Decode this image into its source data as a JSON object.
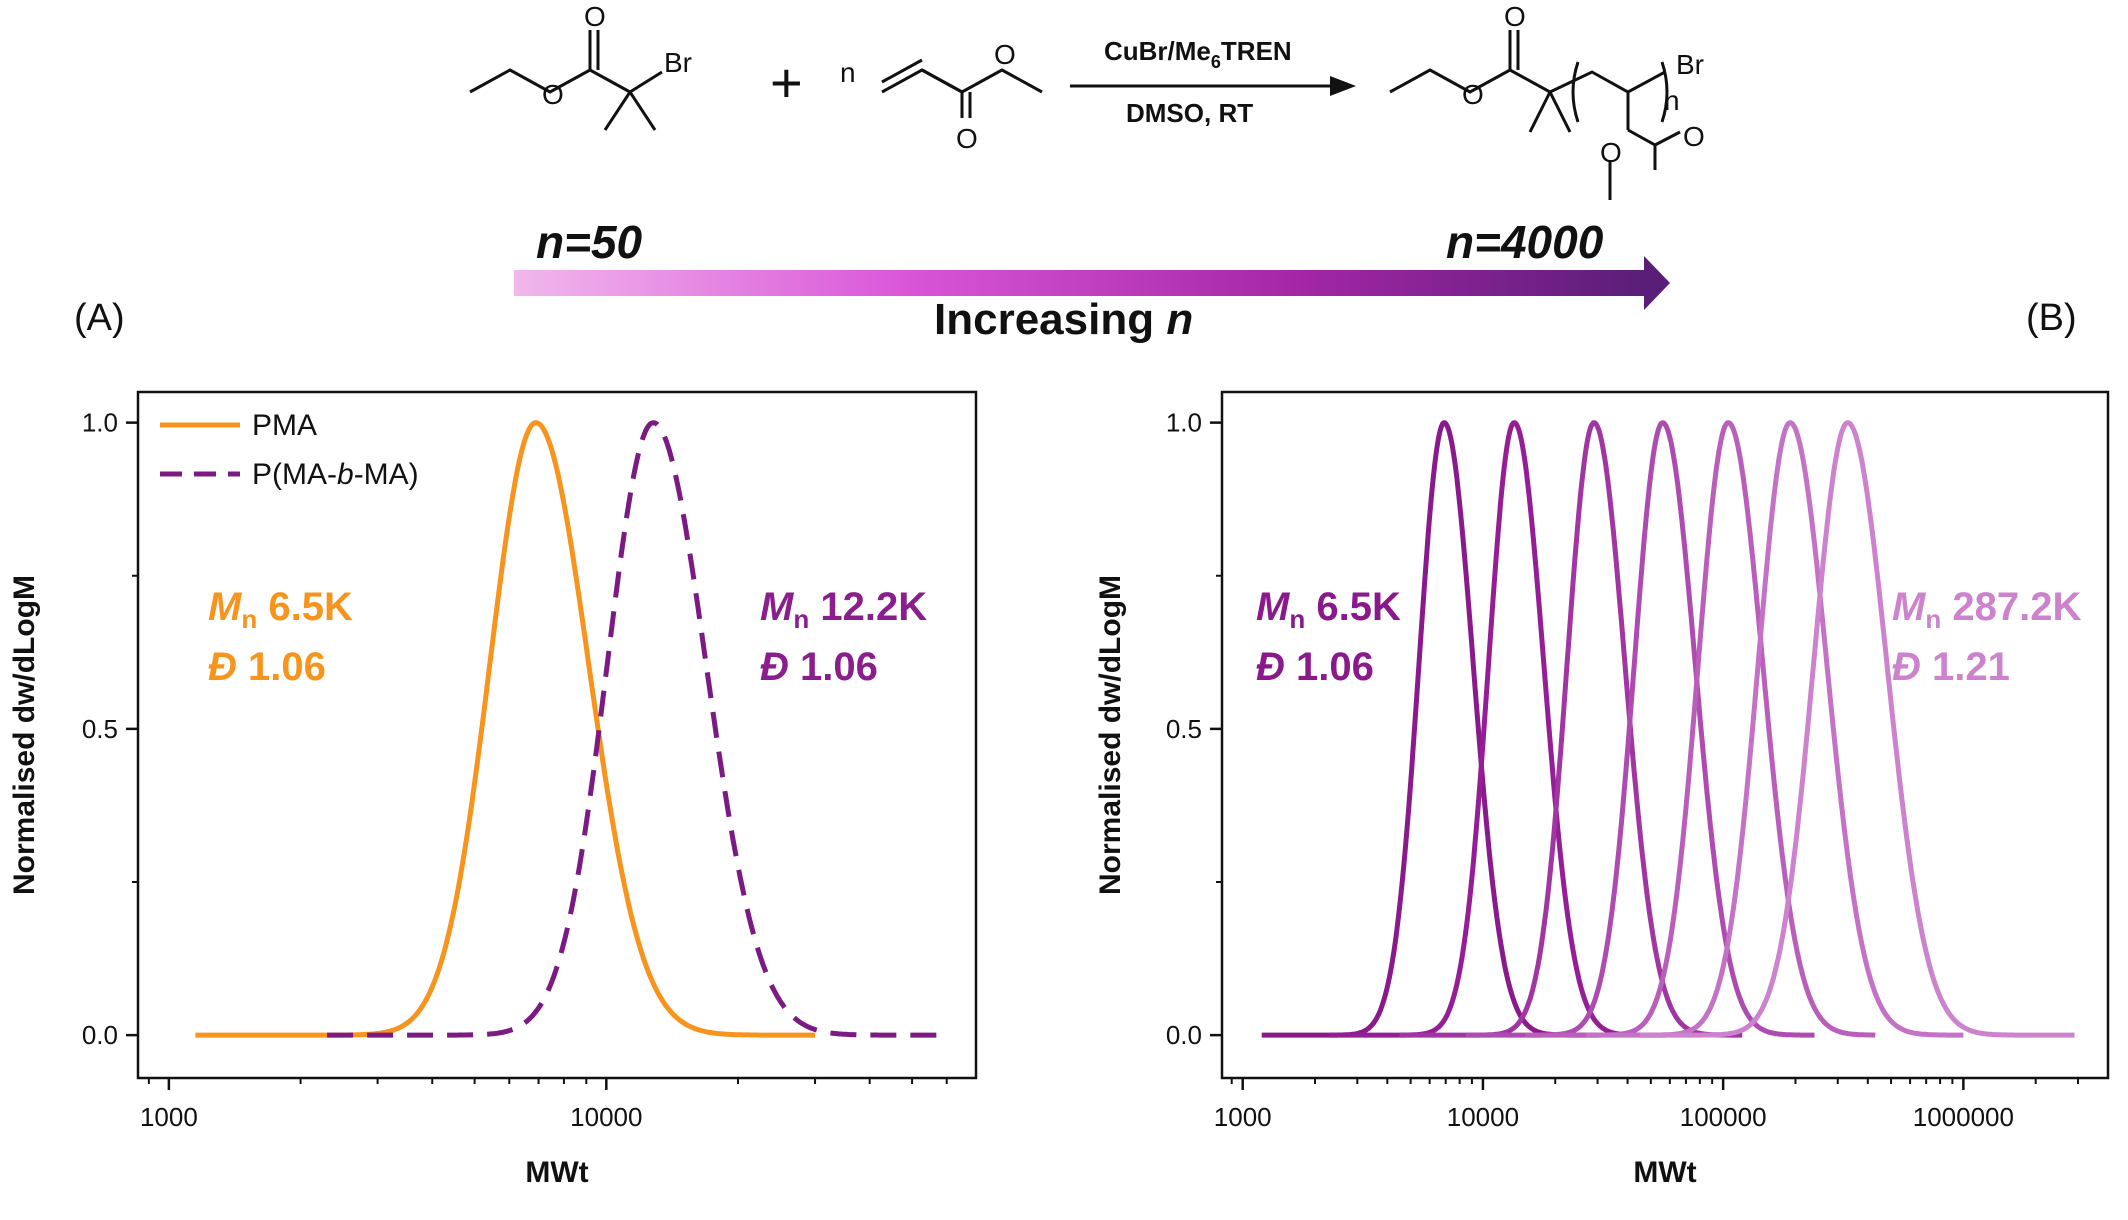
{
  "scheme": {
    "reactant_bromide_label": "Br",
    "reactant_bromide_o1": "O",
    "reactant_bromide_o2": "O",
    "plus": "+",
    "monomer_n": "n",
    "monomer_o1": "O",
    "monomer_o2": "O",
    "catalyst": "CuBr/Me",
    "catalyst_sub": "6",
    "catalyst_tail": "TREN",
    "conditions": "DMSO, RT",
    "product_br": "Br",
    "product_n": "n",
    "product_o1": "O",
    "product_o2": "O",
    "product_o3": "O",
    "product_o4": "O",
    "arrow_start_label": "n=50",
    "arrow_end_label": "n=4000",
    "arrow_caption": "Increasing",
    "arrow_caption_var": "n",
    "gradient_colors": [
      "#f0b8ec",
      "#d955d8",
      "#a226a5",
      "#5a1e78"
    ]
  },
  "panel_labels": {
    "a": "(A)",
    "b": "(B)"
  },
  "chart_data": [
    {
      "type": "line",
      "panel": "A",
      "xlabel": "MWt",
      "ylabel": "Normalised dw/dLogM",
      "xscale": "log",
      "xlim": [
        850,
        70000
      ],
      "ylim": [
        -0.07,
        1.05
      ],
      "xticks": [
        1000,
        10000
      ],
      "xtick_labels": [
        "1000",
        "10000"
      ],
      "yticks": [
        0,
        0.5,
        1
      ],
      "ytick_labels": [
        "0.0",
        "0.5",
        "1.0"
      ],
      "legend_position": "top-left",
      "series": [
        {
          "name": "PMA",
          "color": "#f7941d",
          "dash": "solid",
          "peak": 6900,
          "width": 0.105,
          "x_range": [
            1150,
            30000
          ]
        },
        {
          "name": "P(MA-b-MA)",
          "color": "#7b1a82",
          "dash": "dashed",
          "peak": 12800,
          "width": 0.105,
          "x_range": [
            2300,
            58000
          ]
        }
      ],
      "legend": [
        {
          "label": "PMA",
          "italic_part": ""
        },
        {
          "label_pre": "P(MA-",
          "label_italic": "b",
          "label_post": "-MA)"
        }
      ],
      "annotations": [
        {
          "m_label": "M",
          "m_sub": "n",
          "mn": "6.5K",
          "d_label": "Đ",
          "d": "1.06",
          "color": "#f7941d"
        },
        {
          "m_label": "M",
          "m_sub": "n",
          "mn": "12.2K",
          "d_label": "Đ",
          "d": "1.06",
          "color": "#8a1e8c"
        }
      ]
    },
    {
      "type": "line",
      "panel": "B",
      "xlabel": "MWt",
      "ylabel": "Normalised dw/dLogM",
      "xscale": "log",
      "xlim": [
        820,
        4000000
      ],
      "ylim": [
        -0.07,
        1.05
      ],
      "xticks": [
        1000,
        10000,
        100000,
        1000000
      ],
      "xtick_labels": [
        "1000",
        "10000",
        "100000",
        "1000000"
      ],
      "yticks": [
        0,
        0.5,
        1
      ],
      "ytick_labels": [
        "0.0",
        "0.5",
        "1.0"
      ],
      "series": [
        {
          "color": "#8a1a8c",
          "peak": 6900,
          "width": 0.105,
          "x_range": [
            1200,
            30000
          ]
        },
        {
          "color": "#951e97",
          "peak": 13500,
          "width": 0.107,
          "x_range": [
            2300,
            58000
          ]
        },
        {
          "color": "#a136a2",
          "peak": 29000,
          "width": 0.112,
          "x_range": [
            4500,
            120000
          ]
        },
        {
          "color": "#ae4bb0",
          "peak": 56000,
          "width": 0.118,
          "x_range": [
            8500,
            240000
          ]
        },
        {
          "color": "#b95fbb",
          "peak": 105000,
          "width": 0.125,
          "x_range": [
            15000,
            430000
          ]
        },
        {
          "color": "#c472c6",
          "peak": 190000,
          "width": 0.133,
          "x_range": [
            27000,
            1000000
          ]
        },
        {
          "color": "#cc82cd",
          "peak": 330000,
          "width": 0.142,
          "x_range": [
            45000,
            2900000
          ]
        }
      ],
      "annotations": [
        {
          "m_label": "M",
          "m_sub": "n",
          "mn": "6.5K",
          "d_label": "Đ",
          "d": "1.06",
          "color": "#8a1a8c"
        },
        {
          "m_label": "M",
          "m_sub": "n",
          "mn": "287.2K",
          "d_label": "Đ",
          "d": "1.21",
          "color": "#cc82cd"
        }
      ]
    }
  ]
}
